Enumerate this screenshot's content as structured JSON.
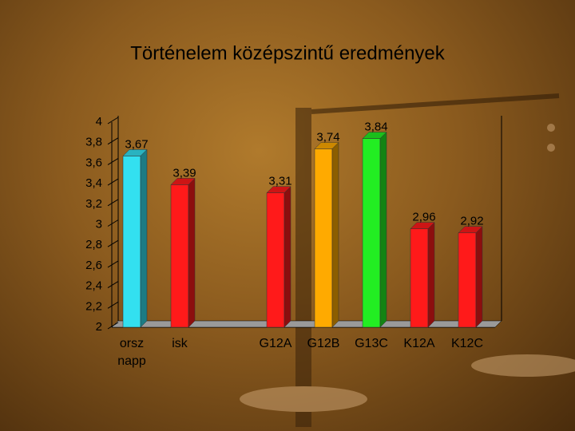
{
  "chart_data": {
    "type": "bar3d",
    "title": "Történelem középszintű eredmények",
    "categories": [
      "orsz napp",
      "isk",
      null,
      "G12A",
      "G12B",
      "G13C",
      "K12A",
      "K12C"
    ],
    "values": [
      3.67,
      3.39,
      null,
      3.31,
      3.74,
      3.84,
      2.96,
      2.92
    ],
    "value_labels": [
      "3,67",
      "3,39",
      null,
      "3,31",
      "3,74",
      "3,84",
      "2,96",
      "2,92"
    ],
    "colors": [
      "#33e0f0",
      "#ff1a1a",
      null,
      "#ff1a1a",
      "#ffaa00",
      "#22ee22",
      "#ff1a1a",
      "#ff1a1a"
    ],
    "ylim": [
      2,
      4
    ],
    "yticks": [
      2,
      {
        "value": 2.2,
        "label": "2,2"
      },
      {
        "value": 2.4,
        "label": "2,4"
      },
      {
        "value": 2.6,
        "label": "2,6"
      },
      {
        "value": 2.8,
        "label": "2,8"
      },
      3,
      {
        "value": 3.2,
        "label": "3,2"
      },
      {
        "value": 3.4,
        "label": "3,4"
      },
      {
        "value": 3.6,
        "label": "3,6"
      },
      {
        "value": 3.8,
        "label": "3,8"
      },
      4
    ],
    "grid": false
  }
}
